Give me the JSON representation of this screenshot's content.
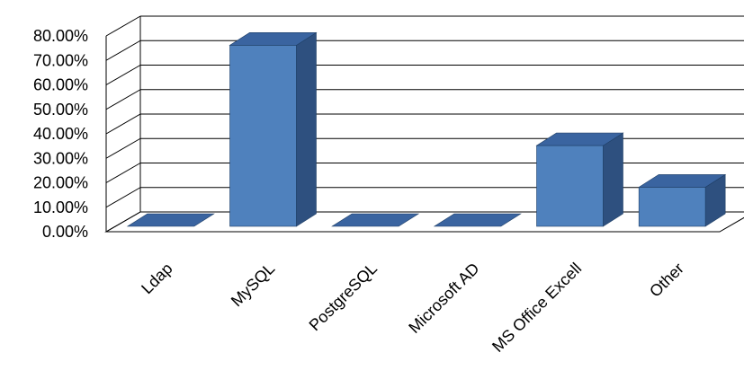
{
  "chart_data": {
    "type": "bar",
    "style": "3d-column",
    "categories": [
      "Ldap",
      "MySQL",
      "PostgreSQL",
      "Microsoft AD",
      "MS Office Excell",
      "Other"
    ],
    "values": [
      0,
      74,
      0,
      0,
      33,
      16
    ],
    "yticks": [
      "0.00%",
      "10.00%",
      "20.00%",
      "30.00%",
      "40.00%",
      "50.00%",
      "60.00%",
      "70.00%",
      "80.00%"
    ],
    "ylim": [
      0,
      80
    ],
    "grid": true,
    "legend": "none",
    "colors": {
      "front": "#4f81bd",
      "top": "#3a64a0",
      "side": "#2e507f",
      "outline": "#1f3f66",
      "grid": "#000000"
    }
  }
}
